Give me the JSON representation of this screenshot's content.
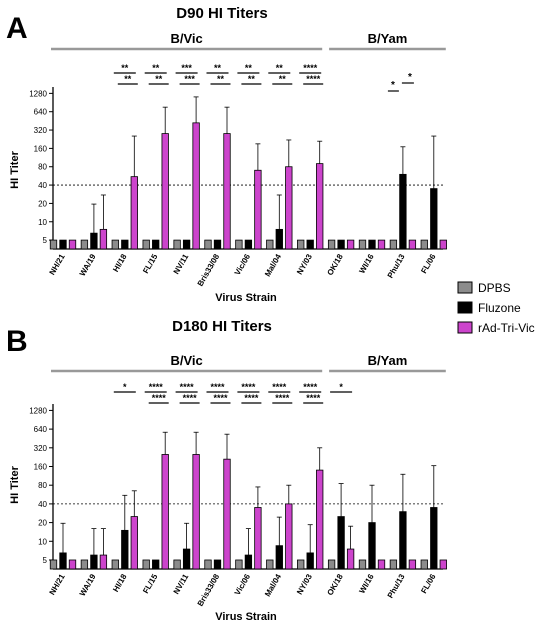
{
  "legend": [
    {
      "name": "DPBS",
      "color": "#8c8c8c"
    },
    {
      "name": "Fluzone",
      "color": "#000000"
    },
    {
      "name": "rAd-Tri-Vic",
      "color": "#cc44cc"
    }
  ],
  "chart_data": [
    {
      "type": "bar",
      "panel_label": "A",
      "title": "D90 HI Titers",
      "xlabel": "Virus Strain",
      "ylabel": "HI Titer",
      "y_scale": "log2",
      "ylim": [
        4,
        1400
      ],
      "yticks": [
        5,
        10,
        20,
        40,
        80,
        160,
        320,
        640,
        1280
      ],
      "threshold": 40,
      "groups": [
        {
          "label": "B/Vic",
          "from": 0,
          "to": 8
        },
        {
          "label": "B/Yam",
          "from": 9,
          "to": 12
        }
      ],
      "categories": [
        "NH/21",
        "WA/19",
        "HI/18",
        "FL/15",
        "NV/11",
        "Bris33/08",
        "Vic/06",
        "Mal/04",
        "NY/03",
        "OK/18",
        "WI/16",
        "Phu/13",
        "FL/06"
      ],
      "series": [
        {
          "name": "DPBS",
          "values": [
            5,
            5,
            5,
            5,
            5,
            5,
            5,
            5,
            5,
            5,
            5,
            5,
            5
          ],
          "errors": [
            0,
            0,
            0,
            0,
            0,
            0,
            0,
            0,
            0,
            0,
            0,
            0,
            0
          ]
        },
        {
          "name": "Fluzone",
          "values": [
            5,
            6.5,
            5,
            5,
            5,
            5,
            5,
            7.5,
            5,
            5,
            5,
            60,
            35
          ],
          "errors": [
            0,
            13,
            0,
            0,
            0,
            0,
            0,
            20,
            0,
            0,
            0,
            110,
            220
          ]
        },
        {
          "name": "rAd-Tri-Vic",
          "values": [
            5,
            7.5,
            55,
            280,
            420,
            280,
            70,
            80,
            90,
            5,
            5,
            5,
            5
          ],
          "errors": [
            0,
            20,
            200,
            480,
            700,
            480,
            120,
            140,
            120,
            0,
            0,
            0,
            0
          ]
        }
      ],
      "annotations": [
        {
          "cat": 2,
          "top": "**",
          "bottom": "**"
        },
        {
          "cat": 3,
          "top": "**",
          "bottom": "**"
        },
        {
          "cat": 4,
          "top": "***",
          "bottom": "***"
        },
        {
          "cat": 5,
          "top": "**",
          "bottom": "**"
        },
        {
          "cat": 6,
          "top": "**",
          "bottom": "**"
        },
        {
          "cat": 7,
          "top": "**",
          "bottom": "**"
        },
        {
          "cat": 8,
          "top": "****",
          "bottom": "****"
        },
        {
          "cat": 11,
          "top": "*",
          "bottom": "*",
          "style": "yam"
        }
      ]
    },
    {
      "type": "bar",
      "panel_label": "B",
      "title": "D180 HI Titers",
      "xlabel": "Virus Strain",
      "ylabel": "HI Titer",
      "y_scale": "log2",
      "ylim": [
        4,
        1400
      ],
      "yticks": [
        5,
        10,
        20,
        40,
        80,
        160,
        320,
        640,
        1280
      ],
      "threshold": 40,
      "groups": [
        {
          "label": "B/Vic",
          "from": 0,
          "to": 8
        },
        {
          "label": "B/Yam",
          "from": 9,
          "to": 12
        }
      ],
      "categories": [
        "NH/21",
        "WA/19",
        "HI/18",
        "FL/15",
        "NV/11",
        "Bris33/08",
        "Vic/06",
        "Mal/04",
        "NY/03",
        "OK/18",
        "WI/16",
        "Phu/13",
        "FL/06"
      ],
      "series": [
        {
          "name": "DPBS",
          "values": [
            5,
            5,
            5,
            5,
            5,
            5,
            5,
            5,
            5,
            5,
            5,
            5,
            5
          ],
          "errors": [
            0,
            0,
            0,
            0,
            0,
            0,
            0,
            0,
            0,
            0,
            0,
            0,
            0
          ]
        },
        {
          "name": "Fluzone",
          "values": [
            6.5,
            6,
            15,
            5,
            7.5,
            5,
            6,
            8.5,
            6.5,
            25,
            20,
            30,
            35
          ],
          "errors": [
            13,
            10,
            40,
            0,
            12,
            0,
            10,
            16,
            12,
            60,
            60,
            90,
            130
          ]
        },
        {
          "name": "rAd-Tri-Vic",
          "values": [
            5,
            6,
            25,
            250,
            250,
            210,
            35,
            40,
            140,
            7.5,
            5,
            5,
            5
          ],
          "errors": [
            0,
            10,
            40,
            320,
            320,
            320,
            40,
            40,
            180,
            10,
            0,
            0,
            0
          ]
        }
      ],
      "annotations": [
        {
          "cat": 2,
          "top": "*",
          "bottom": ""
        },
        {
          "cat": 3,
          "top": "****",
          "bottom": "****"
        },
        {
          "cat": 4,
          "top": "****",
          "bottom": "****"
        },
        {
          "cat": 5,
          "top": "****",
          "bottom": "****"
        },
        {
          "cat": 6,
          "top": "****",
          "bottom": "****"
        },
        {
          "cat": 7,
          "top": "****",
          "bottom": "****"
        },
        {
          "cat": 8,
          "top": "****",
          "bottom": "****"
        },
        {
          "cat": 9,
          "top": "*",
          "bottom": ""
        }
      ]
    }
  ]
}
